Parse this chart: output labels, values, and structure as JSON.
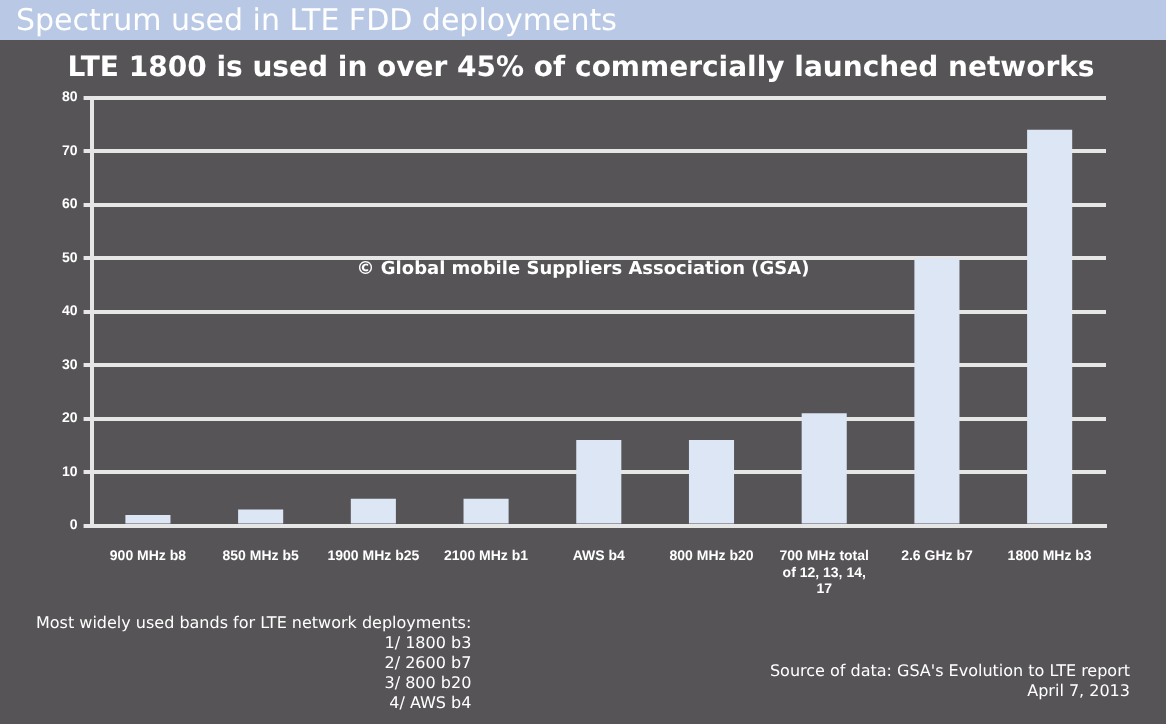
{
  "chart_data": {
    "type": "bar",
    "title": "Spectrum used in LTE FDD deployments",
    "subtitle": "LTE 1800 is used in over 45% of commercially launched networks",
    "categories": [
      "900 MHz b8",
      "850 MHz b5",
      "1900 MHz b25",
      "2100 MHz b1",
      "AWS b4",
      "800 MHz b20",
      "700 MHz total of 12, 13, 14, 17",
      "2.6 GHz b7",
      "1800 MHz b3"
    ],
    "values": [
      2,
      3,
      5,
      5,
      16,
      16,
      21,
      50,
      74
    ],
    "color": "#dce6f4",
    "ylim": [
      0,
      80
    ],
    "yticks": [
      0,
      10,
      20,
      30,
      40,
      50,
      60,
      70,
      80
    ],
    "grid": "y",
    "legend": false,
    "annotations": [
      "© Global mobile Suppliers Association (GSA)",
      "Most widely used bands for LTE network deployments:",
      "1/ 1800 b3",
      "2/ 2600 b7",
      "3/ 800 b20",
      "4/ AWS b4",
      "Source of data: GSA's Evolution to LTE report",
      "April 7, 2013"
    ]
  }
}
